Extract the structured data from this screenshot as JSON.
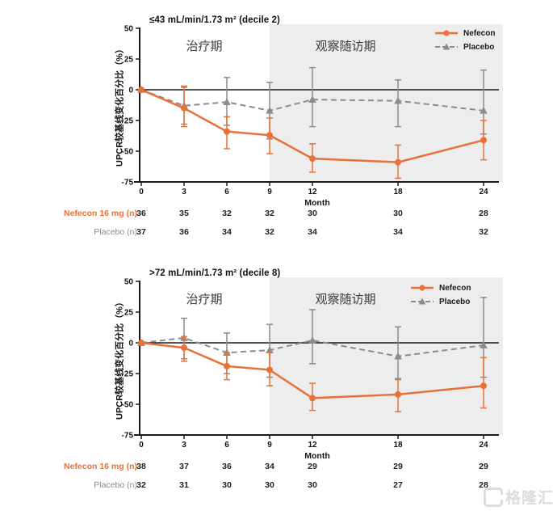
{
  "colors": {
    "nefecon": "#E8713A",
    "placebo": "#8C8C8C",
    "shade": "#EDEDED",
    "axis": "#1A1A1A",
    "watermark": "#DCDCDC"
  },
  "watermark": {
    "text": "格隆汇",
    "icon": "gelonghui-logo"
  },
  "chart_data": [
    {
      "type": "line",
      "title": "≤43 mL/min/1.73 m² (decile 2)",
      "ylabel": "UPCR较基线变化百分比（%）",
      "xlabel": "Month",
      "phase_labels": {
        "treatment": "治疗期",
        "followup": "观察随访期"
      },
      "ylim": [
        -75,
        50
      ],
      "y_ticks": [
        50,
        25,
        0,
        -25,
        -50,
        -75
      ],
      "x_ticks": [
        0,
        3,
        6,
        9,
        12,
        18,
        24
      ],
      "shaded_from_month": 9,
      "legend_position": "top-right",
      "series": [
        {
          "name": "Nefecon",
          "marker": "circle",
          "dash": false,
          "color_key": "nefecon",
          "values": [
            0,
            -15,
            -34,
            -37,
            -56,
            -59,
            -41
          ],
          "err_high": [
            0,
            3,
            -22,
            -23,
            -44,
            -45,
            -25
          ],
          "err_low": [
            0,
            -30,
            -48,
            -52,
            -67,
            -72,
            -57
          ]
        },
        {
          "name": "Placebo",
          "marker": "triangle",
          "dash": true,
          "color_key": "placebo",
          "values": [
            0,
            -13,
            -10,
            -17,
            -8,
            -9,
            -17
          ],
          "err_high": [
            0,
            2,
            10,
            6,
            18,
            8,
            16
          ],
          "err_low": [
            0,
            -28,
            -29,
            -40,
            -30,
            -30,
            -36
          ]
        }
      ],
      "table": {
        "rows": [
          {
            "label": "Nefecon 16 mg (n)",
            "color_key": "nefecon",
            "values": [
              36,
              35,
              32,
              32,
              30,
              30,
              28
            ]
          },
          {
            "label": "Placebo (n)",
            "color_key": "placebo",
            "values": [
              37,
              36,
              34,
              32,
              34,
              34,
              32
            ]
          }
        ]
      }
    },
    {
      "type": "line",
      "title": ">72 mL/min/1.73 m² (decile 8)",
      "ylabel": "UPCR较基线变化百分比（%）",
      "xlabel": "Month",
      "phase_labels": {
        "treatment": "治疗期",
        "followup": "观察随访期"
      },
      "ylim": [
        -75,
        50
      ],
      "y_ticks": [
        50,
        25,
        0,
        -25,
        -50,
        -75
      ],
      "x_ticks": [
        0,
        3,
        6,
        9,
        12,
        18,
        24
      ],
      "shaded_from_month": 9,
      "legend_position": "top-right",
      "series": [
        {
          "name": "Nefecon",
          "marker": "circle",
          "dash": false,
          "color_key": "nefecon",
          "values": [
            0,
            -4,
            -19,
            -22,
            -45,
            -42,
            -35
          ],
          "err_high": [
            0,
            5,
            -8,
            -8,
            -33,
            -30,
            -12
          ],
          "err_low": [
            0,
            -15,
            -30,
            -35,
            -55,
            -56,
            -53
          ]
        },
        {
          "name": "Placebo",
          "marker": "triangle",
          "dash": true,
          "color_key": "placebo",
          "values": [
            0,
            4,
            -8,
            -6,
            2,
            -11,
            -2
          ],
          "err_high": [
            0,
            20,
            8,
            15,
            27,
            13,
            37
          ],
          "err_low": [
            0,
            -13,
            -25,
            -28,
            -17,
            -29,
            -28
          ]
        }
      ],
      "table": {
        "rows": [
          {
            "label": "Nefecon 16 mg (n)",
            "color_key": "nefecon",
            "values": [
              38,
              37,
              36,
              34,
              29,
              29,
              29
            ]
          },
          {
            "label": "Placebo (n)",
            "color_key": "placebo",
            "values": [
              32,
              31,
              30,
              30,
              30,
              27,
              28
            ]
          }
        ]
      }
    }
  ]
}
